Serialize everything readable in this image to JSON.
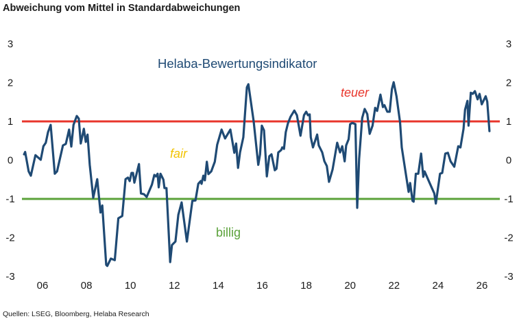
{
  "chart_data": {
    "type": "line",
    "title": "Abweichung vom Mittel in Standardabweichungen",
    "source": "Quellen: LSEG, Bloomberg, Helaba Research",
    "xlabel": "",
    "ylabel": "",
    "xlim": [
      2005.1,
      2026.5
    ],
    "ylim": [
      -3,
      3
    ],
    "grid": false,
    "legend": "none",
    "x_ticks": [
      2006,
      2008,
      2010,
      2012,
      2014,
      2016,
      2018,
      2020,
      2022,
      2024,
      2026
    ],
    "x_tick_labels": [
      "06",
      "08",
      "10",
      "12",
      "14",
      "16",
      "18",
      "20",
      "22",
      "24",
      "26"
    ],
    "y_ticks": [
      3,
      2,
      1,
      0,
      -1,
      -2,
      -3
    ],
    "y_tick_labels": [
      "3",
      "2",
      "1",
      "0",
      "-1",
      "-2",
      "-3"
    ],
    "reference_lines": [
      {
        "name": "teuer",
        "value": 1,
        "color": "#e8352b"
      },
      {
        "name": "billig",
        "value": -1,
        "color": "#5ba23a"
      }
    ],
    "annotations": {
      "series_label": "Helaba-Bewertungsindikator",
      "teuer": "teuer",
      "fair": "fair",
      "billig": "billig"
    },
    "colors": {
      "series": "#1f4a74",
      "teuer": "#e8352b",
      "fair": "#f2c300",
      "billig": "#5ba23a"
    },
    "series": [
      {
        "name": "Helaba-Bewertungsindikator",
        "x": [
          2005.16,
          2005.21,
          2005.37,
          2005.47,
          2005.68,
          2005.92,
          2006.04,
          2006.15,
          2006.25,
          2006.37,
          2006.56,
          2006.66,
          2006.93,
          2007.06,
          2007.21,
          2007.31,
          2007.41,
          2007.56,
          2007.65,
          2007.74,
          2007.88,
          2007.97,
          2008.05,
          2008.15,
          2008.31,
          2008.49,
          2008.64,
          2008.72,
          2008.9,
          2008.95,
          2009.11,
          2009.29,
          2009.45,
          2009.63,
          2009.78,
          2009.89,
          2009.97,
          2010.05,
          2010.12,
          2010.18,
          2010.39,
          2010.48,
          2010.62,
          2010.74,
          2010.98,
          2011.09,
          2011.16,
          2011.24,
          2011.29,
          2011.37,
          2011.5,
          2011.55,
          2011.64,
          2011.81,
          2011.89,
          2012.05,
          2012.18,
          2012.33,
          2012.57,
          2012.82,
          2012.96,
          2013.09,
          2013.2,
          2013.24,
          2013.32,
          2013.39,
          2013.48,
          2013.55,
          2013.68,
          2013.84,
          2013.95,
          2014.15,
          2014.31,
          2014.55,
          2014.73,
          2014.81,
          2014.9,
          2014.99,
          2015.14,
          2015.3,
          2015.37,
          2015.61,
          2015.82,
          2015.9,
          2015.98,
          2016.08,
          2016.21,
          2016.32,
          2016.42,
          2016.57,
          2016.65,
          2016.73,
          2016.86,
          2016.91,
          2016.99,
          2017.07,
          2017.17,
          2017.29,
          2017.46,
          2017.58,
          2017.74,
          2017.9,
          2018.0,
          2018.08,
          2018.16,
          2018.21,
          2018.31,
          2018.5,
          2018.57,
          2018.73,
          2018.83,
          2018.94,
          2019.04,
          2019.2,
          2019.41,
          2019.54,
          2019.64,
          2019.75,
          2019.82,
          2019.93,
          2020.0,
          2020.1,
          2020.24,
          2020.32,
          2020.41,
          2020.55,
          2020.66,
          2020.78,
          2020.89,
          2021.02,
          2021.14,
          2021.23,
          2021.38,
          2021.49,
          2021.56,
          2021.69,
          2021.8,
          2021.9,
          2021.98,
          2022.11,
          2022.27,
          2022.35,
          2022.47,
          2022.66,
          2022.73,
          2022.84,
          2022.89,
          2022.99,
          2023.1,
          2023.23,
          2023.33,
          2023.39,
          2023.62,
          2023.83,
          2023.9,
          2024.09,
          2024.19,
          2024.33,
          2024.45,
          2024.57,
          2024.74,
          2024.92,
          2025.02,
          2025.16,
          2025.23,
          2025.34,
          2025.39,
          2025.49,
          2025.58,
          2025.68,
          2025.8,
          2025.89,
          2025.99,
          2026.17,
          2026.24,
          2026.34
        ],
        "values": [
          0.15,
          0.21,
          -0.29,
          -0.4,
          0.13,
          0.01,
          0.36,
          0.45,
          0.72,
          0.91,
          -0.35,
          -0.29,
          0.38,
          0.42,
          0.79,
          0.35,
          0.91,
          1.14,
          1.07,
          0.43,
          0.81,
          0.47,
          0.66,
          -0.12,
          -0.97,
          -0.49,
          -1.35,
          -1.17,
          -2.7,
          -2.73,
          -2.54,
          -2.58,
          -1.5,
          -1.44,
          -0.49,
          -0.45,
          -0.54,
          -0.33,
          -0.33,
          -0.58,
          -0.1,
          -0.86,
          -0.88,
          -0.95,
          -0.63,
          -0.38,
          -0.42,
          -0.35,
          -0.7,
          -0.35,
          -0.5,
          -0.72,
          -0.72,
          -2.63,
          -2.19,
          -2.1,
          -1.41,
          -1.09,
          -2.1,
          -1.05,
          -1.04,
          -0.61,
          -0.54,
          -0.61,
          -0.4,
          -0.52,
          -0.04,
          -0.36,
          -0.29,
          -0.04,
          0.4,
          0.79,
          0.56,
          0.79,
          0.19,
          0.43,
          -0.2,
          0.2,
          0.59,
          1.88,
          1.96,
          1.0,
          -0.12,
          0.15,
          0.89,
          0.77,
          -0.42,
          0.1,
          0.15,
          -0.26,
          -0.22,
          0.2,
          0.26,
          0.33,
          0.29,
          0.72,
          0.95,
          1.12,
          1.28,
          1.16,
          0.63,
          1.16,
          1.25,
          1.16,
          1.18,
          0.59,
          0.33,
          0.66,
          0.38,
          0.2,
          -0.03,
          -0.15,
          -0.56,
          -0.24,
          0.45,
          0.2,
          0.36,
          -0.03,
          0.38,
          0.54,
          0.93,
          0.96,
          0.93,
          -1.23,
          0.03,
          1.09,
          1.32,
          1.19,
          0.68,
          0.89,
          1.35,
          1.27,
          1.69,
          1.37,
          1.42,
          1.25,
          1.25,
          1.83,
          2.01,
          1.65,
          0.98,
          0.33,
          -0.12,
          -0.82,
          -0.59,
          -1.05,
          -1.07,
          -0.35,
          -0.35,
          0.17,
          -0.43,
          -0.29,
          -0.59,
          -0.86,
          -1.12,
          -0.35,
          -0.33,
          0.17,
          0.19,
          -0.03,
          -0.17,
          0.36,
          0.33,
          0.81,
          1.3,
          1.53,
          0.89,
          1.74,
          1.71,
          1.78,
          1.57,
          1.71,
          1.44,
          1.65,
          1.51,
          0.75
        ]
      }
    ]
  }
}
